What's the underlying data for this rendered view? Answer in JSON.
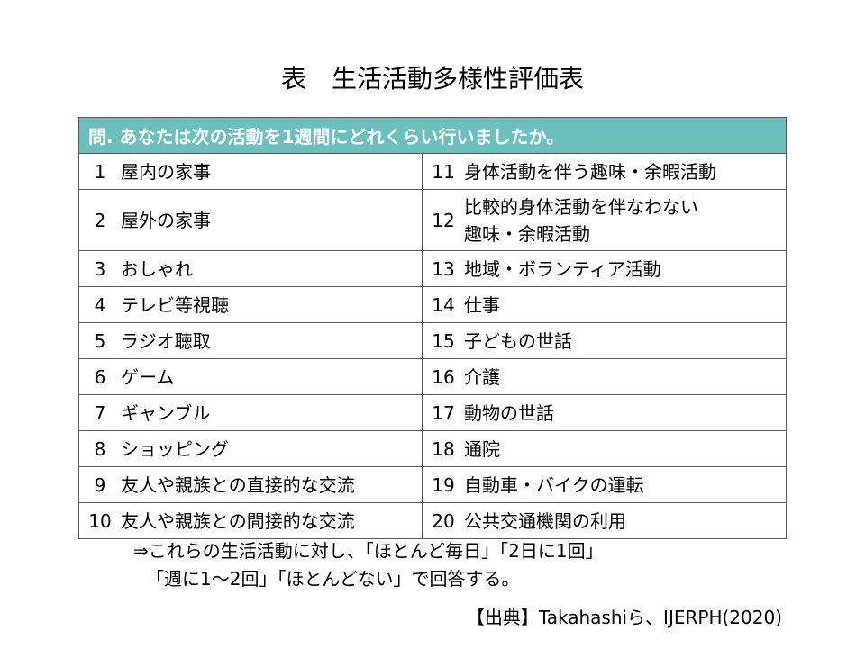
{
  "title": "表　生活活動多様性評価表",
  "question": "問.  あなたは次の活動を1週間にどれくらい行いましたか。",
  "header_color": "#6cc0bc",
  "rows": [
    {
      "left": {
        "num": "1",
        "label": "屋内の家事"
      },
      "right": {
        "num": "11",
        "label": "身体活動を伴う趣味・余暇活動"
      }
    },
    {
      "left": {
        "num": "2",
        "label": "屋外の家事"
      },
      "right": {
        "num": "12",
        "label": "比較的身体活動を伴なわない",
        "label2": "趣味・余暇活動"
      }
    },
    {
      "left": {
        "num": "3",
        "label": "おしゃれ"
      },
      "right": {
        "num": "13",
        "label": "地域・ボランティア活動"
      }
    },
    {
      "left": {
        "num": "4",
        "label": "テレビ等視聴"
      },
      "right": {
        "num": "14",
        "label": "仕事"
      }
    },
    {
      "left": {
        "num": "5",
        "label": "ラジオ聴取"
      },
      "right": {
        "num": "15",
        "label": "子どもの世話"
      }
    },
    {
      "left": {
        "num": "6",
        "label": "ゲーム"
      },
      "right": {
        "num": "16",
        "label": "介護"
      }
    },
    {
      "left": {
        "num": "7",
        "label": "ギャンブル"
      },
      "right": {
        "num": "17",
        "label": "動物の世話"
      }
    },
    {
      "left": {
        "num": "8",
        "label": "ショッピング"
      },
      "right": {
        "num": "18",
        "label": "通院"
      }
    },
    {
      "left": {
        "num": "9",
        "label": "友人や親族との直接的な交流"
      },
      "right": {
        "num": "19",
        "label": "自動車・バイクの運転"
      }
    },
    {
      "left": {
        "num": "10",
        "label": "友人や親族との間接的な交流"
      },
      "right": {
        "num": "20",
        "label": "公共交通機関の利用"
      }
    }
  ],
  "note": {
    "line1": "⇒これらの生活活動に対し、「ほとんど毎日」「2日に1回」",
    "line2": "「週に1～2回」「ほとんどない」で回答する。"
  },
  "source": "【出典】Takahashiら、IJERPH(2020)"
}
